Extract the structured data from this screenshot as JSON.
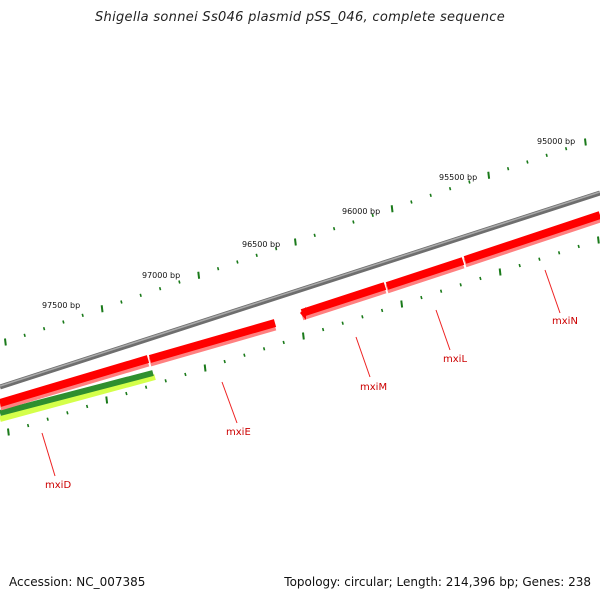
{
  "title": "Shigella sonnei Ss046 plasmid pSS_046, complete sequence",
  "footer": {
    "accession": "Accession: NC_007385",
    "summary": "Topology: circular; Length: 214,396 bp; Genes: 238"
  },
  "colors": {
    "backbone": "#888888",
    "gene_forward": "#ff0000",
    "gene_forward_shadow": "#ff7070",
    "gene_dark_green": "#2e8b2e",
    "gene_light_green": "#ccff44",
    "ticks": "#1a7a1a",
    "label_line": "#ee2222",
    "label_text": "#cc0000"
  },
  "scale": {
    "tick_labels": [
      "95000 bp",
      "95500 bp",
      "96000 bp",
      "96500 bp",
      "97000 bp",
      "97500 bp"
    ]
  },
  "genes": [
    "mxiN",
    "mxiL",
    "mxiM",
    "mxiE",
    "mxiD"
  ]
}
